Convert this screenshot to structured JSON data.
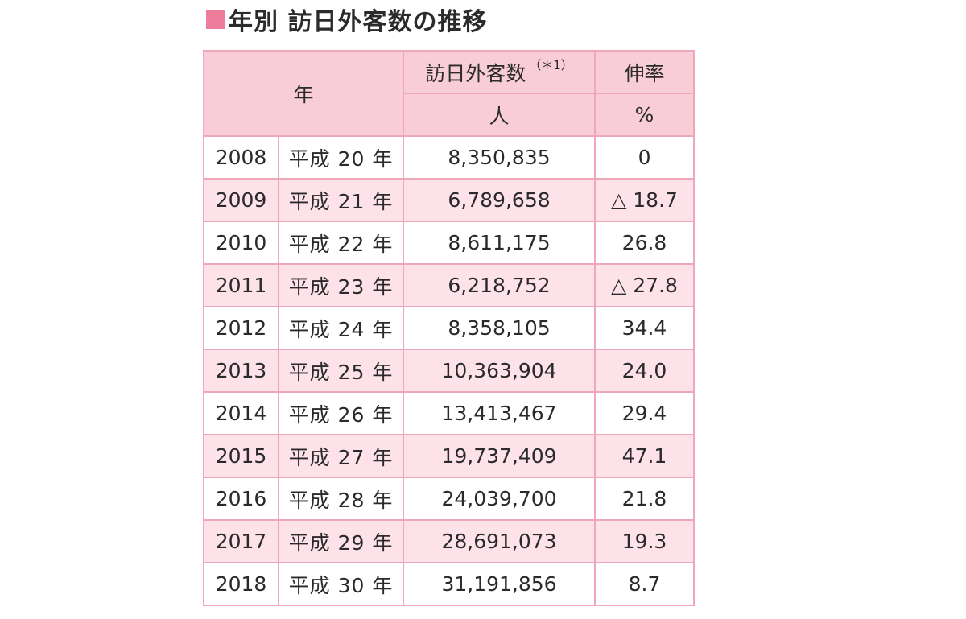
{
  "title": "年別 訪日外客数の推移",
  "table": {
    "header": {
      "year": "年",
      "visitors": "訪日外客数",
      "visitors_note": "（＊1）",
      "growth": "伸率",
      "visitors_unit": "人",
      "growth_unit": "%"
    },
    "rows": [
      {
        "year": "2008",
        "era": "平成 20 年",
        "visitors": "8,350,835",
        "growth": "0"
      },
      {
        "year": "2009",
        "era": "平成 21 年",
        "visitors": "6,789,658",
        "growth": "△ 18.7"
      },
      {
        "year": "2010",
        "era": "平成 22 年",
        "visitors": "8,611,175",
        "growth": "26.8"
      },
      {
        "year": "2011",
        "era": "平成 23 年",
        "visitors": "6,218,752",
        "growth": "△ 27.8"
      },
      {
        "year": "2012",
        "era": "平成 24 年",
        "visitors": "8,358,105",
        "growth": "34.4"
      },
      {
        "year": "2013",
        "era": "平成 25 年",
        "visitors": "10,363,904",
        "growth": "24.0"
      },
      {
        "year": "2014",
        "era": "平成 26 年",
        "visitors": "13,413,467",
        "growth": "29.4"
      },
      {
        "year": "2015",
        "era": "平成 27 年",
        "visitors": "19,737,409",
        "growth": "47.1"
      },
      {
        "year": "2016",
        "era": "平成 28 年",
        "visitors": "24,039,700",
        "growth": "21.8"
      },
      {
        "year": "2017",
        "era": "平成 29 年",
        "visitors": "28,691,073",
        "growth": "19.3"
      },
      {
        "year": "2018",
        "era": "平成 30 年",
        "visitors": "31,191,856",
        "growth": "8.7"
      }
    ]
  },
  "colors": {
    "accent": "#ee7d9b",
    "header_bg": "#f9cdd8",
    "alt_row_bg": "#fde2e9",
    "border": "#f0a7bb"
  }
}
